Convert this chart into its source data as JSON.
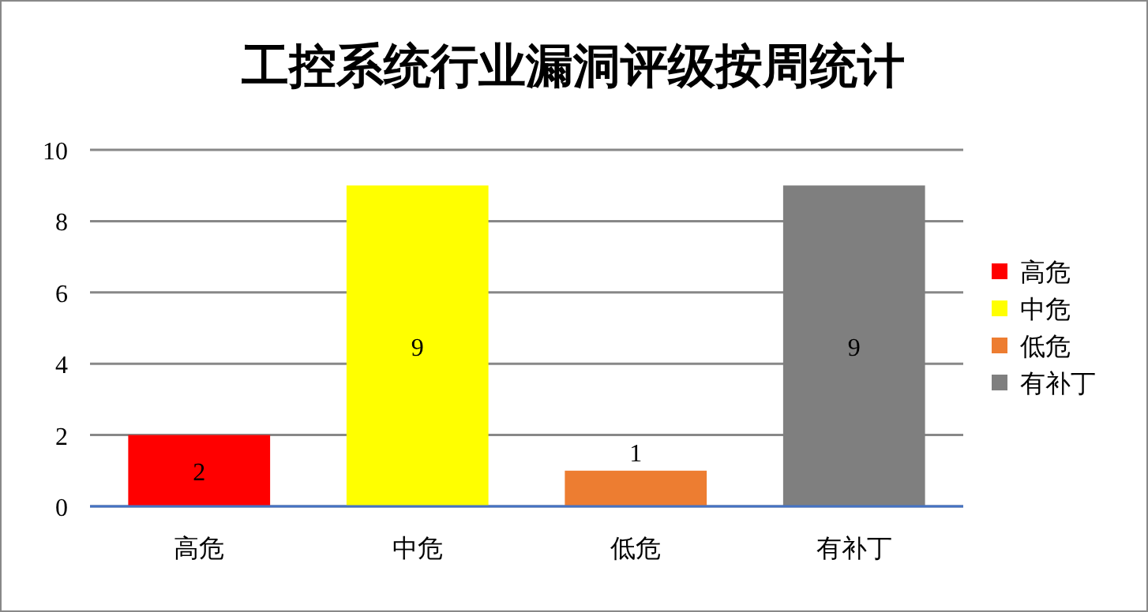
{
  "chart_data": {
    "type": "bar",
    "title": "工控系统行业漏洞评级按周统计",
    "categories": [
      "高危",
      "中危",
      "低危",
      "有补丁"
    ],
    "series": [
      {
        "name": "高危",
        "color": "#ff0000",
        "values": [
          2,
          null,
          null,
          null
        ]
      },
      {
        "name": "中危",
        "color": "#ffff00",
        "values": [
          null,
          9,
          null,
          null
        ]
      },
      {
        "name": "低危",
        "color": "#ed7d31",
        "values": [
          null,
          null,
          1,
          null
        ]
      },
      {
        "name": "有补丁",
        "color": "#7f7f7f",
        "values": [
          null,
          null,
          null,
          9
        ]
      }
    ],
    "ylim": [
      0,
      10
    ],
    "yticks": [
      0,
      2,
      4,
      6,
      8,
      10
    ],
    "grid": "y",
    "legend": "right",
    "data_labels": true
  }
}
